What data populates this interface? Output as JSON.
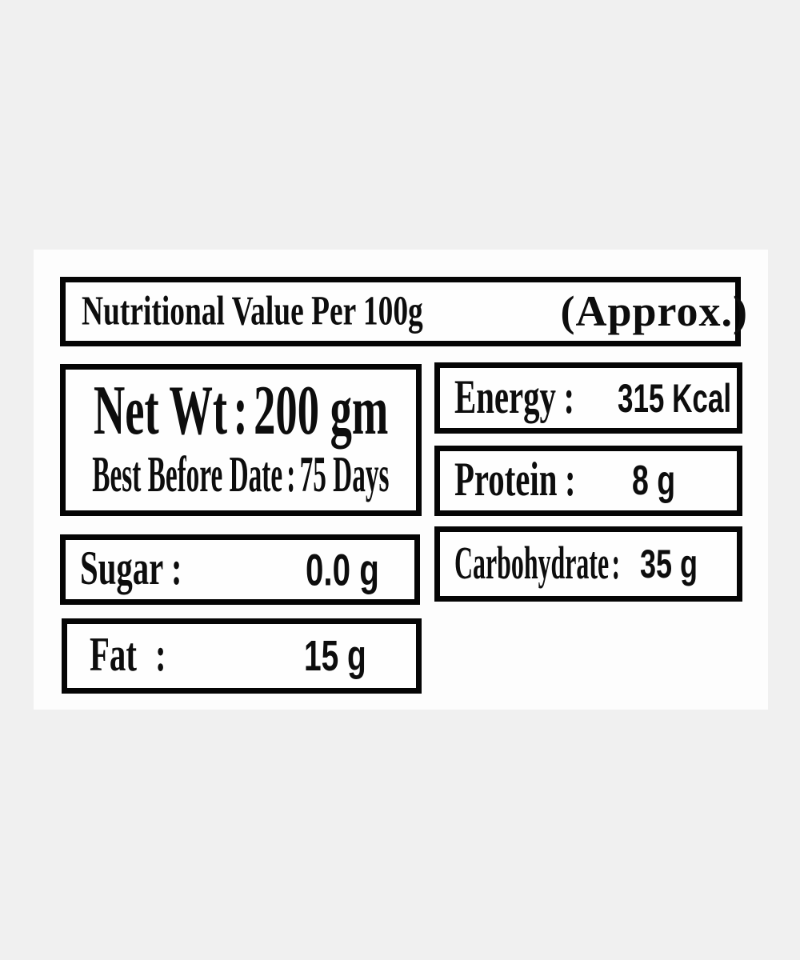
{
  "colors": {
    "page_bg": "#f0f0f0",
    "panel_bg": "#fdfdfd",
    "border": "#050505",
    "text": "#0d0d0d"
  },
  "header": {
    "title": "Nutritional Value Per 100g",
    "approx": "(Approx.)"
  },
  "net_wt": {
    "label": "Net Wt",
    "sep": ":",
    "value": "200 gm"
  },
  "best_before": {
    "label": "Best Before Date",
    "sep": ":",
    "value": "75 Days"
  },
  "energy": {
    "label": "Energy",
    "sep": ":",
    "value": "315 Kcal"
  },
  "protein": {
    "label": "Protein",
    "sep": ":",
    "value": "8 g"
  },
  "carbohydrate": {
    "label": "Carbohydrate",
    "sep": ":",
    "value": "35 g"
  },
  "sugar": {
    "label": "Sugar",
    "sep": ":",
    "value": "0.0 g"
  },
  "fat": {
    "label": "Fat",
    "sep": ":",
    "value": "15 g"
  }
}
